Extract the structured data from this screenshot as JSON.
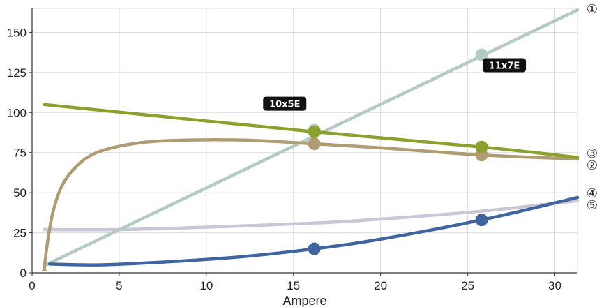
{
  "chart_data": {
    "type": "line",
    "title": "",
    "xlabel": "Ampere",
    "ylabel": "",
    "xlim": [
      0,
      31.3
    ],
    "ylim": [
      0,
      165
    ],
    "x_ticks": [
      0,
      5,
      10,
      15,
      20,
      25,
      30
    ],
    "y_ticks": [
      0,
      25,
      50,
      75,
      100,
      125,
      150
    ],
    "grid": true,
    "legend": "none",
    "series": [
      {
        "marker": "①",
        "color": "#b3cbc2",
        "points": [
          [
            0.8,
            5
          ],
          [
            31.3,
            164
          ]
        ],
        "highlighted": [
          [
            16.2,
            89
          ],
          [
            25.8,
            136
          ]
        ]
      },
      {
        "marker": "②",
        "color": "#b09c72",
        "points": [
          [
            0.7,
            3
          ],
          [
            0.9,
            20
          ],
          [
            1.2,
            38
          ],
          [
            1.7,
            54
          ],
          [
            2.5,
            66
          ],
          [
            3.5,
            74
          ],
          [
            5,
            79
          ],
          [
            7,
            82
          ],
          [
            10,
            83
          ],
          [
            13,
            82.5
          ],
          [
            16.2,
            80.5
          ],
          [
            20,
            78
          ],
          [
            25.8,
            73.5
          ],
          [
            31.3,
            71
          ]
        ],
        "highlighted": [
          [
            16.2,
            80.5
          ],
          [
            25.8,
            73.5
          ]
        ]
      },
      {
        "marker": "③",
        "color": "#8aa12e",
        "points": [
          [
            0.7,
            105
          ],
          [
            16.2,
            88
          ],
          [
            25.8,
            78.5
          ],
          [
            31.3,
            72
          ]
        ],
        "highlighted": [
          [
            16.2,
            88
          ],
          [
            25.8,
            78.5
          ]
        ]
      },
      {
        "marker": "④",
        "color": "#3f64a0",
        "points": [
          [
            1,
            5.5
          ],
          [
            4,
            5
          ],
          [
            8,
            7
          ],
          [
            12,
            10
          ],
          [
            16.2,
            15
          ],
          [
            20,
            21
          ],
          [
            25.8,
            33
          ],
          [
            31.3,
            47
          ]
        ],
        "highlighted": [
          [
            16.2,
            15
          ],
          [
            25.8,
            33
          ]
        ]
      },
      {
        "marker": "⑤",
        "color": "#c9c6d8",
        "points": [
          [
            0.7,
            27
          ],
          [
            5,
            27
          ],
          [
            10,
            28.5
          ],
          [
            16.2,
            31
          ],
          [
            20,
            33.5
          ],
          [
            25.8,
            38.5
          ],
          [
            31.3,
            45
          ]
        ],
        "highlighted": []
      }
    ],
    "annotations": [
      {
        "text": "10x5E",
        "x": 14.5,
        "y": 105.5
      },
      {
        "text": "11x7E",
        "x": 27.1,
        "y": 129.5
      }
    ]
  }
}
